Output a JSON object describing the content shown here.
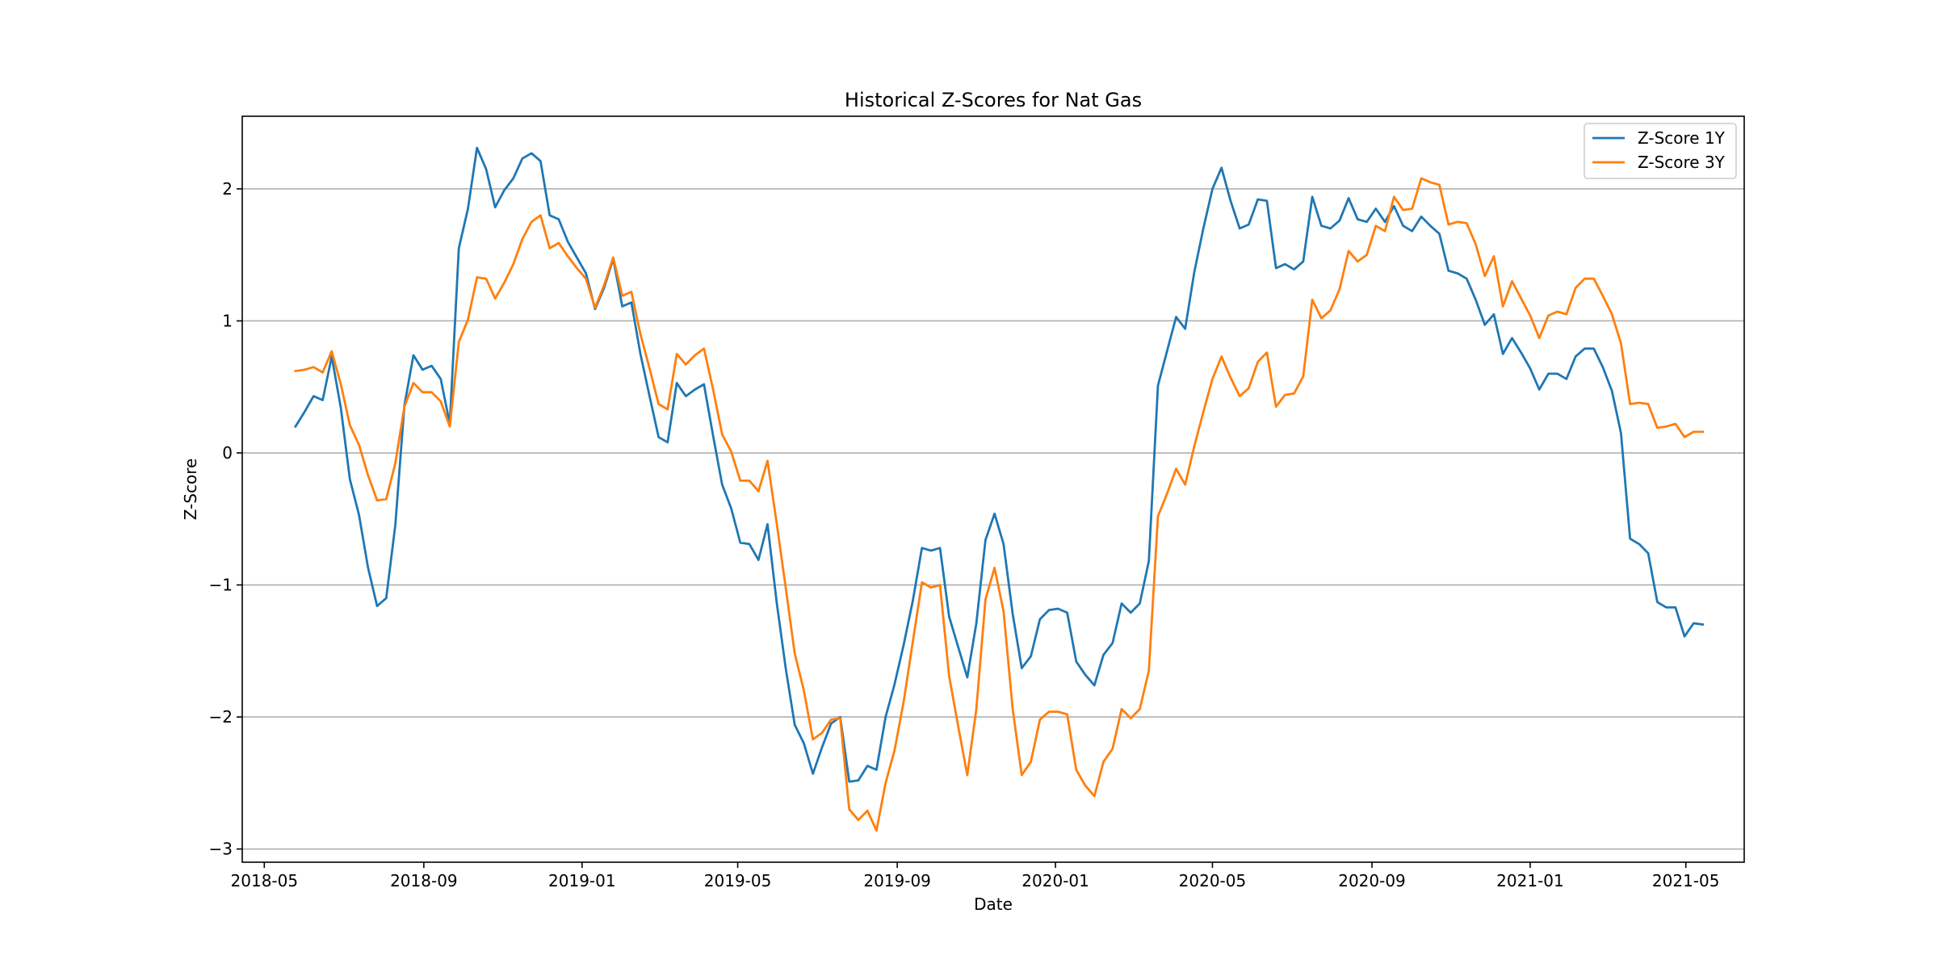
{
  "chart_data": {
    "type": "line",
    "title": "Historical Z-Scores for Nat Gas",
    "xlabel": "Date",
    "ylabel": "Z-Score",
    "xlim": [
      "2018-04-14",
      "2021-06-15"
    ],
    "ylim": [
      -3.1,
      2.55
    ],
    "x_ticks": [
      "2018-05",
      "2018-09",
      "2019-01",
      "2019-05",
      "2019-09",
      "2020-01",
      "2020-05",
      "2020-09",
      "2021-01",
      "2021-05"
    ],
    "y_ticks": [
      -3,
      -2,
      -1,
      0,
      1,
      2
    ],
    "y_tick_labels": [
      "−3",
      "−2",
      "−1",
      "0",
      "1",
      "2"
    ],
    "grid": "horizontal",
    "legend": "top-right",
    "start_date": "2018-05-25",
    "step_days": 7,
    "series": [
      {
        "name": "Z-Score 1Y",
        "color": "#1f77b4",
        "values": [
          0.2,
          0.31,
          0.43,
          0.4,
          0.73,
          0.34,
          -0.2,
          -0.47,
          -0.87,
          -1.16,
          -1.1,
          -0.55,
          0.36,
          0.74,
          0.63,
          0.66,
          0.56,
          0.22,
          1.55,
          1.85,
          2.31,
          2.15,
          1.86,
          1.99,
          2.08,
          2.23,
          2.27,
          2.21,
          1.8,
          1.77,
          1.6,
          1.48,
          1.36,
          1.09,
          1.25,
          1.47,
          1.11,
          1.14,
          0.75,
          0.43,
          0.12,
          0.08,
          0.53,
          0.43,
          0.48,
          0.52,
          0.13,
          -0.24,
          -0.42,
          -0.68,
          -0.69,
          -0.81,
          -0.54,
          -1.13,
          -1.63,
          -2.06,
          -2.2,
          -2.43,
          -2.23,
          -2.05,
          -2.0,
          -2.49,
          -2.48,
          -2.37,
          -2.4,
          -2.0,
          -1.75,
          -1.45,
          -1.12,
          -0.72,
          -0.74,
          -0.72,
          -1.24,
          -1.47,
          -1.7,
          -1.29,
          -0.66,
          -0.46,
          -0.69,
          -1.22,
          -1.63,
          -1.54,
          -1.26,
          -1.19,
          -1.18,
          -1.21,
          -1.58,
          -1.68,
          -1.76,
          -1.53,
          -1.44,
          -1.14,
          -1.21,
          -1.14,
          -0.82,
          0.51,
          0.77,
          1.03,
          0.94,
          1.37,
          1.7,
          2.0,
          2.16,
          1.91,
          1.7,
          1.73,
          1.92,
          1.91,
          1.4,
          1.43,
          1.39,
          1.45,
          1.94,
          1.72,
          1.7,
          1.76,
          1.93,
          1.77,
          1.75,
          1.85,
          1.75,
          1.87,
          1.72,
          1.68,
          1.79,
          1.72,
          1.66,
          1.38,
          1.36,
          1.32,
          1.16,
          0.97,
          1.05,
          0.75,
          0.87,
          0.76,
          0.64,
          0.48,
          0.6,
          0.6,
          0.56,
          0.73,
          0.79,
          0.79,
          0.65,
          0.47,
          0.15,
          -0.65,
          -0.69,
          -0.76,
          -1.13,
          -1.17,
          -1.17,
          -1.39,
          -1.29,
          -1.3
        ]
      },
      {
        "name": "Z-Score 3Y",
        "color": "#ff7f0e",
        "values": [
          0.62,
          0.63,
          0.65,
          0.61,
          0.77,
          0.52,
          0.21,
          0.06,
          -0.17,
          -0.36,
          -0.35,
          -0.08,
          0.35,
          0.53,
          0.46,
          0.46,
          0.39,
          0.2,
          0.84,
          1.01,
          1.33,
          1.32,
          1.17,
          1.29,
          1.43,
          1.62,
          1.75,
          1.8,
          1.55,
          1.59,
          1.49,
          1.4,
          1.32,
          1.1,
          1.27,
          1.48,
          1.19,
          1.22,
          0.9,
          0.64,
          0.37,
          0.33,
          0.75,
          0.67,
          0.74,
          0.79,
          0.48,
          0.14,
          0.01,
          -0.21,
          -0.21,
          -0.29,
          -0.06,
          -0.53,
          -1.02,
          -1.52,
          -1.8,
          -2.17,
          -2.12,
          -2.02,
          -2.01,
          -2.7,
          -2.78,
          -2.71,
          -2.86,
          -2.5,
          -2.25,
          -1.88,
          -1.43,
          -0.98,
          -1.02,
          -1.0,
          -1.69,
          -2.07,
          -2.44,
          -1.94,
          -1.11,
          -0.87,
          -1.2,
          -1.94,
          -2.44,
          -2.34,
          -2.02,
          -1.96,
          -1.96,
          -1.98,
          -2.4,
          -2.52,
          -2.6,
          -2.34,
          -2.24,
          -1.94,
          -2.01,
          -1.94,
          -1.65,
          -0.48,
          -0.31,
          -0.12,
          -0.24,
          0.05,
          0.31,
          0.56,
          0.73,
          0.57,
          0.43,
          0.49,
          0.69,
          0.76,
          0.35,
          0.44,
          0.45,
          0.58,
          1.16,
          1.02,
          1.08,
          1.24,
          1.53,
          1.45,
          1.5,
          1.72,
          1.68,
          1.94,
          1.84,
          1.85,
          2.08,
          2.05,
          2.03,
          1.73,
          1.75,
          1.74,
          1.58,
          1.34,
          1.49,
          1.11,
          1.3,
          1.17,
          1.04,
          0.87,
          1.04,
          1.07,
          1.05,
          1.25,
          1.32,
          1.32,
          1.19,
          1.05,
          0.83,
          0.37,
          0.38,
          0.37,
          0.19,
          0.2,
          0.22,
          0.12,
          0.16,
          0.16
        ]
      }
    ]
  }
}
